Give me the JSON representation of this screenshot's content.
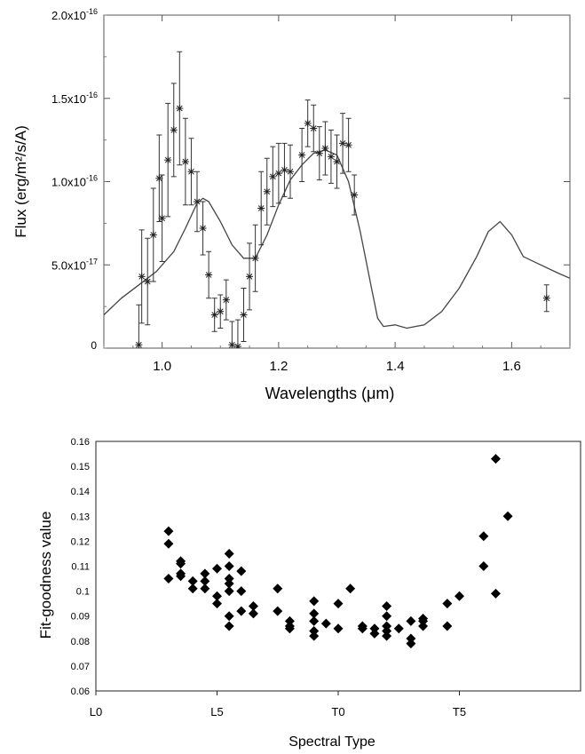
{
  "chart_data": [
    {
      "type": "scatter",
      "xlabel": "Wavelengths (μm)",
      "ylabel": "Flux (erg/m²/s/A)",
      "xlim": [
        0.9,
        1.7
      ],
      "ylim": [
        0,
        2e-16
      ],
      "x_ticks": [
        {
          "value": 1.0,
          "label": "1.0"
        },
        {
          "value": 1.2,
          "label": "1.2"
        },
        {
          "value": 1.4,
          "label": "1.4"
        },
        {
          "value": 1.6,
          "label": "1.6"
        }
      ],
      "y_ticks": [
        {
          "value": 5e-17,
          "label": "5.0x10",
          "exp": "-17"
        },
        {
          "value": 1e-16,
          "label": "1.0x10",
          "exp": "-16"
        },
        {
          "value": 1.5e-16,
          "label": "1.5x10",
          "exp": "-16"
        },
        {
          "value": 2e-16,
          "label": "2.0x10",
          "exp": "-16"
        }
      ],
      "zero_label": "0",
      "model_curve": [
        [
          0.9,
          2e-17
        ],
        [
          0.93,
          3e-17
        ],
        [
          0.96,
          3.8e-17
        ],
        [
          0.99,
          4.6e-17
        ],
        [
          1.02,
          5.8e-17
        ],
        [
          1.04,
          7.2e-17
        ],
        [
          1.06,
          8.7e-17
        ],
        [
          1.07,
          9e-17
        ],
        [
          1.08,
          8.8e-17
        ],
        [
          1.1,
          7.6e-17
        ],
        [
          1.12,
          6.2e-17
        ],
        [
          1.14,
          5.4e-17
        ],
        [
          1.16,
          5.4e-17
        ],
        [
          1.18,
          6.8e-17
        ],
        [
          1.2,
          8.6e-17
        ],
        [
          1.22,
          1.01e-16
        ],
        [
          1.24,
          1.1e-16
        ],
        [
          1.26,
          1.17e-16
        ],
        [
          1.28,
          1.19e-16
        ],
        [
          1.3,
          1.16e-16
        ],
        [
          1.32,
          1e-16
        ],
        [
          1.34,
          7e-17
        ],
        [
          1.36,
          3.5e-17
        ],
        [
          1.37,
          1.8e-17
        ],
        [
          1.38,
          1.3e-17
        ],
        [
          1.4,
          1.4e-17
        ],
        [
          1.42,
          1.2e-17
        ],
        [
          1.45,
          1.4e-17
        ],
        [
          1.48,
          2.2e-17
        ],
        [
          1.51,
          3.6e-17
        ],
        [
          1.54,
          5.5e-17
        ],
        [
          1.56,
          7e-17
        ],
        [
          1.58,
          7.6e-17
        ],
        [
          1.6,
          6.8e-17
        ],
        [
          1.62,
          5.5e-17
        ],
        [
          1.65,
          5e-17
        ],
        [
          1.68,
          4.5e-17
        ],
        [
          1.7,
          4.2e-17
        ]
      ],
      "points": [
        {
          "x": 0.96,
          "y": 2e-18,
          "err": 2.4e-17
        },
        {
          "x": 0.965,
          "y": 4.3e-17,
          "err": 2.8e-17
        },
        {
          "x": 0.975,
          "y": 4e-17,
          "err": 2.6e-17
        },
        {
          "x": 0.985,
          "y": 6.8e-17,
          "err": 2.8e-17
        },
        {
          "x": 0.995,
          "y": 1.02e-16,
          "err": 2.6e-17
        },
        {
          "x": 1.0,
          "y": 7.8e-17,
          "err": 2.6e-17
        },
        {
          "x": 1.01,
          "y": 1.13e-16,
          "err": 3.4e-17
        },
        {
          "x": 1.02,
          "y": 1.31e-16,
          "err": 2.8e-17
        },
        {
          "x": 1.03,
          "y": 1.44e-16,
          "err": 3.4e-17
        },
        {
          "x": 1.04,
          "y": 1.12e-16,
          "err": 2.6e-17
        },
        {
          "x": 1.05,
          "y": 1.06e-16,
          "err": 2e-17
        },
        {
          "x": 1.06,
          "y": 8.8e-17,
          "err": 1.8e-17
        },
        {
          "x": 1.07,
          "y": 7.2e-17,
          "err": 1.6e-17
        },
        {
          "x": 1.08,
          "y": 4.4e-17,
          "err": 1.4e-17
        },
        {
          "x": 1.09,
          "y": 2e-17,
          "err": 1e-17
        },
        {
          "x": 1.1,
          "y": 2.2e-17,
          "err": 1e-17
        },
        {
          "x": 1.11,
          "y": 2.9e-17,
          "err": 1.2e-17
        },
        {
          "x": 1.12,
          "y": 2e-18,
          "err": 1.4e-17
        },
        {
          "x": 1.13,
          "y": 1e-18,
          "err": 1.6e-17
        },
        {
          "x": 1.14,
          "y": 2e-17,
          "err": 1.6e-17
        },
        {
          "x": 1.15,
          "y": 4.3e-17,
          "err": 2e-17
        },
        {
          "x": 1.16,
          "y": 5.4e-17,
          "err": 2e-17
        },
        {
          "x": 1.17,
          "y": 8.4e-17,
          "err": 2.2e-17
        },
        {
          "x": 1.18,
          "y": 9.4e-17,
          "err": 2e-17
        },
        {
          "x": 1.19,
          "y": 1.03e-16,
          "err": 1.8e-17
        },
        {
          "x": 1.2,
          "y": 1.05e-16,
          "err": 1.8e-17
        },
        {
          "x": 1.21,
          "y": 1.07e-16,
          "err": 1.6e-17
        },
        {
          "x": 1.22,
          "y": 1.06e-16,
          "err": 1.6e-17
        },
        {
          "x": 1.24,
          "y": 1.16e-16,
          "err": 1.6e-17
        },
        {
          "x": 1.25,
          "y": 1.35e-16,
          "err": 1.4e-17
        },
        {
          "x": 1.26,
          "y": 1.32e-16,
          "err": 1.4e-17
        },
        {
          "x": 1.27,
          "y": 1.17e-16,
          "err": 1.6e-17
        },
        {
          "x": 1.28,
          "y": 1.2e-16,
          "err": 1.6e-17
        },
        {
          "x": 1.29,
          "y": 1.15e-16,
          "err": 1.6e-17
        },
        {
          "x": 1.3,
          "y": 1.12e-16,
          "err": 1.6e-17
        },
        {
          "x": 1.31,
          "y": 1.23e-16,
          "err": 1.8e-17
        },
        {
          "x": 1.32,
          "y": 1.22e-16,
          "err": 1.6e-17
        },
        {
          "x": 1.33,
          "y": 9.2e-17,
          "err": 1.2e-17
        },
        {
          "x": 1.66,
          "y": 3e-17,
          "err": 8e-18
        }
      ]
    },
    {
      "type": "scatter",
      "xlabel": "Spectral Type",
      "ylabel": "Fit-goodness value",
      "xlim": [
        0,
        20
      ],
      "ylim": [
        0.06,
        0.16
      ],
      "x_ticks": [
        {
          "value": 0,
          "label": "L0"
        },
        {
          "value": 5,
          "label": "L5"
        },
        {
          "value": 10,
          "label": "T0"
        },
        {
          "value": 15,
          "label": "T5"
        }
      ],
      "y_ticks": [
        {
          "value": 0.06,
          "label": "0.06"
        },
        {
          "value": 0.07,
          "label": "0.07"
        },
        {
          "value": 0.08,
          "label": "0.08"
        },
        {
          "value": 0.09,
          "label": "0.09"
        },
        {
          "value": 0.1,
          "label": "0.1"
        },
        {
          "value": 0.11,
          "label": "0.11"
        },
        {
          "value": 0.12,
          "label": "0.12"
        },
        {
          "value": 0.13,
          "label": "0.13"
        },
        {
          "value": 0.14,
          "label": "0.14"
        },
        {
          "value": 0.15,
          "label": "0.15"
        },
        {
          "value": 0.16,
          "label": "0.16"
        }
      ],
      "points": [
        [
          3.0,
          0.124
        ],
        [
          3.0,
          0.119
        ],
        [
          3.0,
          0.105
        ],
        [
          3.5,
          0.112
        ],
        [
          3.5,
          0.111
        ],
        [
          3.5,
          0.107
        ],
        [
          3.5,
          0.106
        ],
        [
          4.0,
          0.104
        ],
        [
          4.0,
          0.101
        ],
        [
          4.5,
          0.107
        ],
        [
          4.5,
          0.104
        ],
        [
          4.5,
          0.101
        ],
        [
          5.0,
          0.109
        ],
        [
          5.0,
          0.098
        ],
        [
          5.0,
          0.095
        ],
        [
          5.5,
          0.115
        ],
        [
          5.5,
          0.11
        ],
        [
          5.5,
          0.105
        ],
        [
          5.5,
          0.103
        ],
        [
          5.5,
          0.1
        ],
        [
          5.5,
          0.09
        ],
        [
          5.5,
          0.086
        ],
        [
          6.0,
          0.108
        ],
        [
          6.0,
          0.1
        ],
        [
          6.0,
          0.092
        ],
        [
          6.5,
          0.094
        ],
        [
          6.5,
          0.091
        ],
        [
          7.5,
          0.101
        ],
        [
          7.5,
          0.092
        ],
        [
          8.0,
          0.088
        ],
        [
          8.0,
          0.086
        ],
        [
          8.0,
          0.085
        ],
        [
          9.0,
          0.096
        ],
        [
          9.0,
          0.091
        ],
        [
          9.0,
          0.088
        ],
        [
          9.0,
          0.084
        ],
        [
          9.0,
          0.082
        ],
        [
          9.5,
          0.087
        ],
        [
          10.0,
          0.095
        ],
        [
          10.0,
          0.085
        ],
        [
          10.5,
          0.101
        ],
        [
          11.0,
          0.086
        ],
        [
          11.0,
          0.085
        ],
        [
          11.5,
          0.085
        ],
        [
          11.5,
          0.083
        ],
        [
          12.0,
          0.094
        ],
        [
          12.0,
          0.09
        ],
        [
          12.0,
          0.086
        ],
        [
          12.0,
          0.084
        ],
        [
          12.0,
          0.082
        ],
        [
          12.5,
          0.085
        ],
        [
          13.0,
          0.088
        ],
        [
          13.0,
          0.081
        ],
        [
          13.0,
          0.079
        ],
        [
          13.5,
          0.089
        ],
        [
          13.5,
          0.088
        ],
        [
          13.5,
          0.086
        ],
        [
          14.5,
          0.095
        ],
        [
          14.5,
          0.086
        ],
        [
          15.0,
          0.098
        ],
        [
          16.0,
          0.122
        ],
        [
          16.0,
          0.11
        ],
        [
          16.5,
          0.153
        ],
        [
          16.5,
          0.099
        ],
        [
          17.0,
          0.13
        ]
      ]
    }
  ]
}
